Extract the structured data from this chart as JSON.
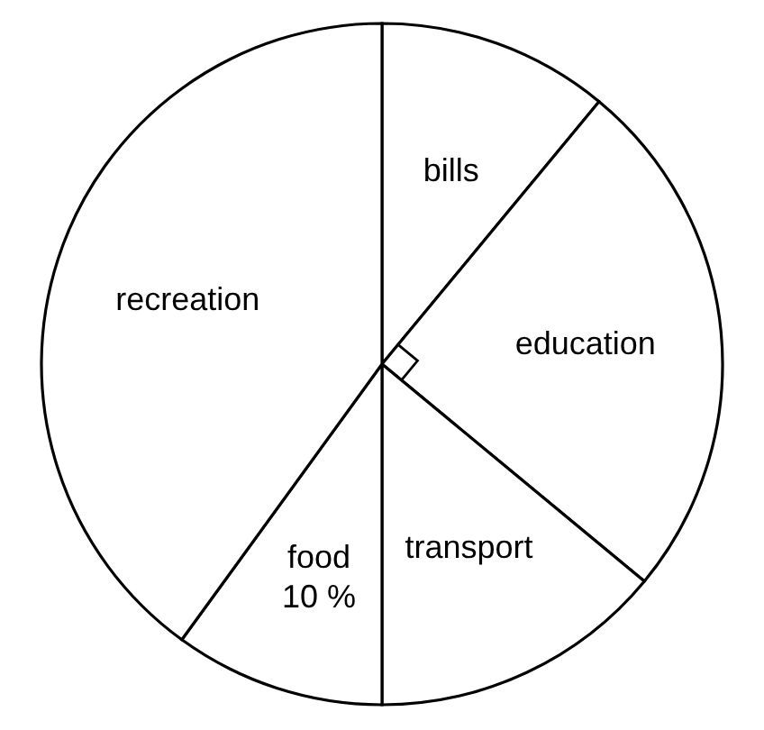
{
  "chart_data": {
    "type": "pie",
    "categories": [
      "bills",
      "education",
      "transport",
      "food",
      "recreation"
    ],
    "values": [
      11,
      25,
      14,
      10,
      40
    ],
    "colors": [
      "#ffffff",
      "#ffffff",
      "#ffffff",
      "#ffffff",
      "#ffffff"
    ],
    "value_labels": [
      null,
      null,
      null,
      "10 %",
      null
    ]
  }
}
